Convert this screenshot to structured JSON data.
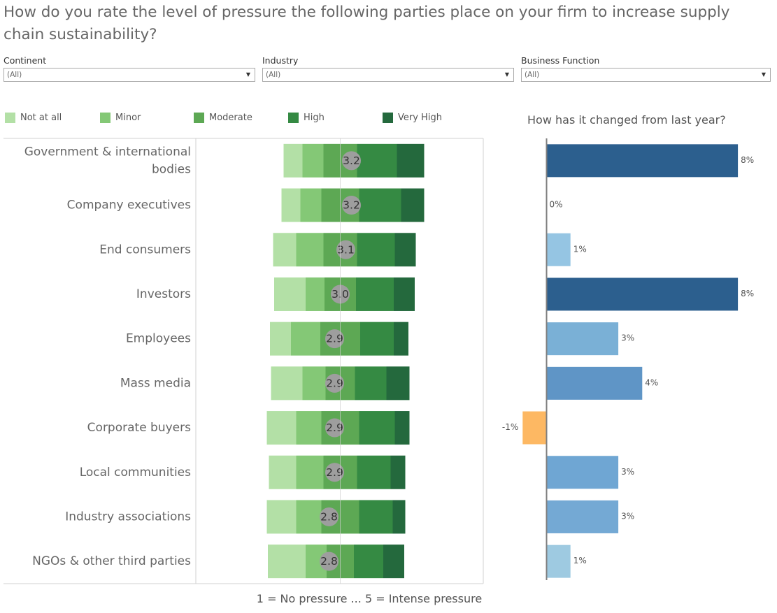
{
  "title": "How do you rate the level of pressure the following parties place on your firm to increase supply chain sustainability?",
  "filters": [
    {
      "label": "Continent",
      "value": "(All)"
    },
    {
      "label": "Industry",
      "value": "(All)"
    },
    {
      "label": "Business Function",
      "value": "(All)"
    }
  ],
  "legend": [
    {
      "label": "Not at all",
      "color": "#b3e0a6"
    },
    {
      "label": "Minor",
      "color": "#84c876"
    },
    {
      "label": "Moderate",
      "color": "#5da854"
    },
    {
      "label": "High",
      "color": "#358a43"
    },
    {
      "label": "Very High",
      "color": "#24693d"
    }
  ],
  "change_title": "How has it changed from last year?",
  "footnote": "1 = No pressure ... 5 = Intense pressure",
  "chart_data": [
    {
      "type": "bar",
      "subtype": "diverging-stacked-bar",
      "categories": [
        "Government & international bodies",
        "Company executives",
        "End consumers",
        "Investors",
        "Employees",
        "Mass media",
        "Corporate buyers",
        "Local communities",
        "Industry associations",
        "NGOs & other third parties"
      ],
      "category_lines": [
        [
          "Government & international",
          "bodies"
        ],
        [
          "Company executives"
        ],
        [
          "End consumers"
        ],
        [
          "Investors"
        ],
        [
          "Employees"
        ],
        [
          "Mass media"
        ],
        [
          "Corporate buyers"
        ],
        [
          "Local communities"
        ],
        [
          "Industry associations"
        ],
        [
          "NGOs & other third parties"
        ]
      ],
      "scores": [
        "3.2",
        "3.2",
        "3.1",
        "3.0",
        "2.9",
        "2.9",
        "2.9",
        "2.9",
        "2.8",
        "2.8"
      ],
      "series": [
        {
          "name": "Not at all",
          "values": [
            9,
            9,
            11,
            15,
            10,
            15,
            14,
            13,
            14,
            18
          ]
        },
        {
          "name": "Minor",
          "values": [
            10,
            10,
            13,
            9,
            14,
            11,
            12,
            13,
            12,
            10
          ]
        },
        {
          "name": "Moderate",
          "values": [
            16,
            18,
            16,
            15,
            19,
            14,
            18,
            16,
            18,
            13
          ]
        },
        {
          "name": "High",
          "values": [
            19,
            20,
            18,
            18,
            16,
            15,
            17,
            16,
            16,
            14
          ]
        },
        {
          "name": "Very High",
          "values": [
            13,
            11,
            10,
            10,
            7,
            11,
            7,
            7,
            6,
            10
          ]
        }
      ],
      "grid": false,
      "legend_position": "top"
    },
    {
      "type": "bar",
      "orientation": "horizontal",
      "title": "How has it changed from last year?",
      "categories": [
        "Government & international bodies",
        "Company executives",
        "End consumers",
        "Investors",
        "Employees",
        "Mass media",
        "Corporate buyers",
        "Local communities",
        "Industry associations",
        "NGOs & other third parties"
      ],
      "values": [
        8,
        0,
        1,
        8,
        3,
        4,
        -1,
        3,
        3,
        1
      ],
      "value_labels": [
        "8%",
        "0%",
        "1%",
        "8%",
        "3%",
        "4%",
        "-1%",
        "3%",
        "3%",
        "1%"
      ],
      "colors": [
        "#2c5f8e",
        "#9ecae1",
        "#95c5e3",
        "#2c5f8e",
        "#7ab0d6",
        "#5f95c6",
        "#fdb863",
        "#6fa6d3",
        "#74a9d4",
        "#9ecae1"
      ],
      "xlim": [
        -1,
        8
      ]
    }
  ]
}
